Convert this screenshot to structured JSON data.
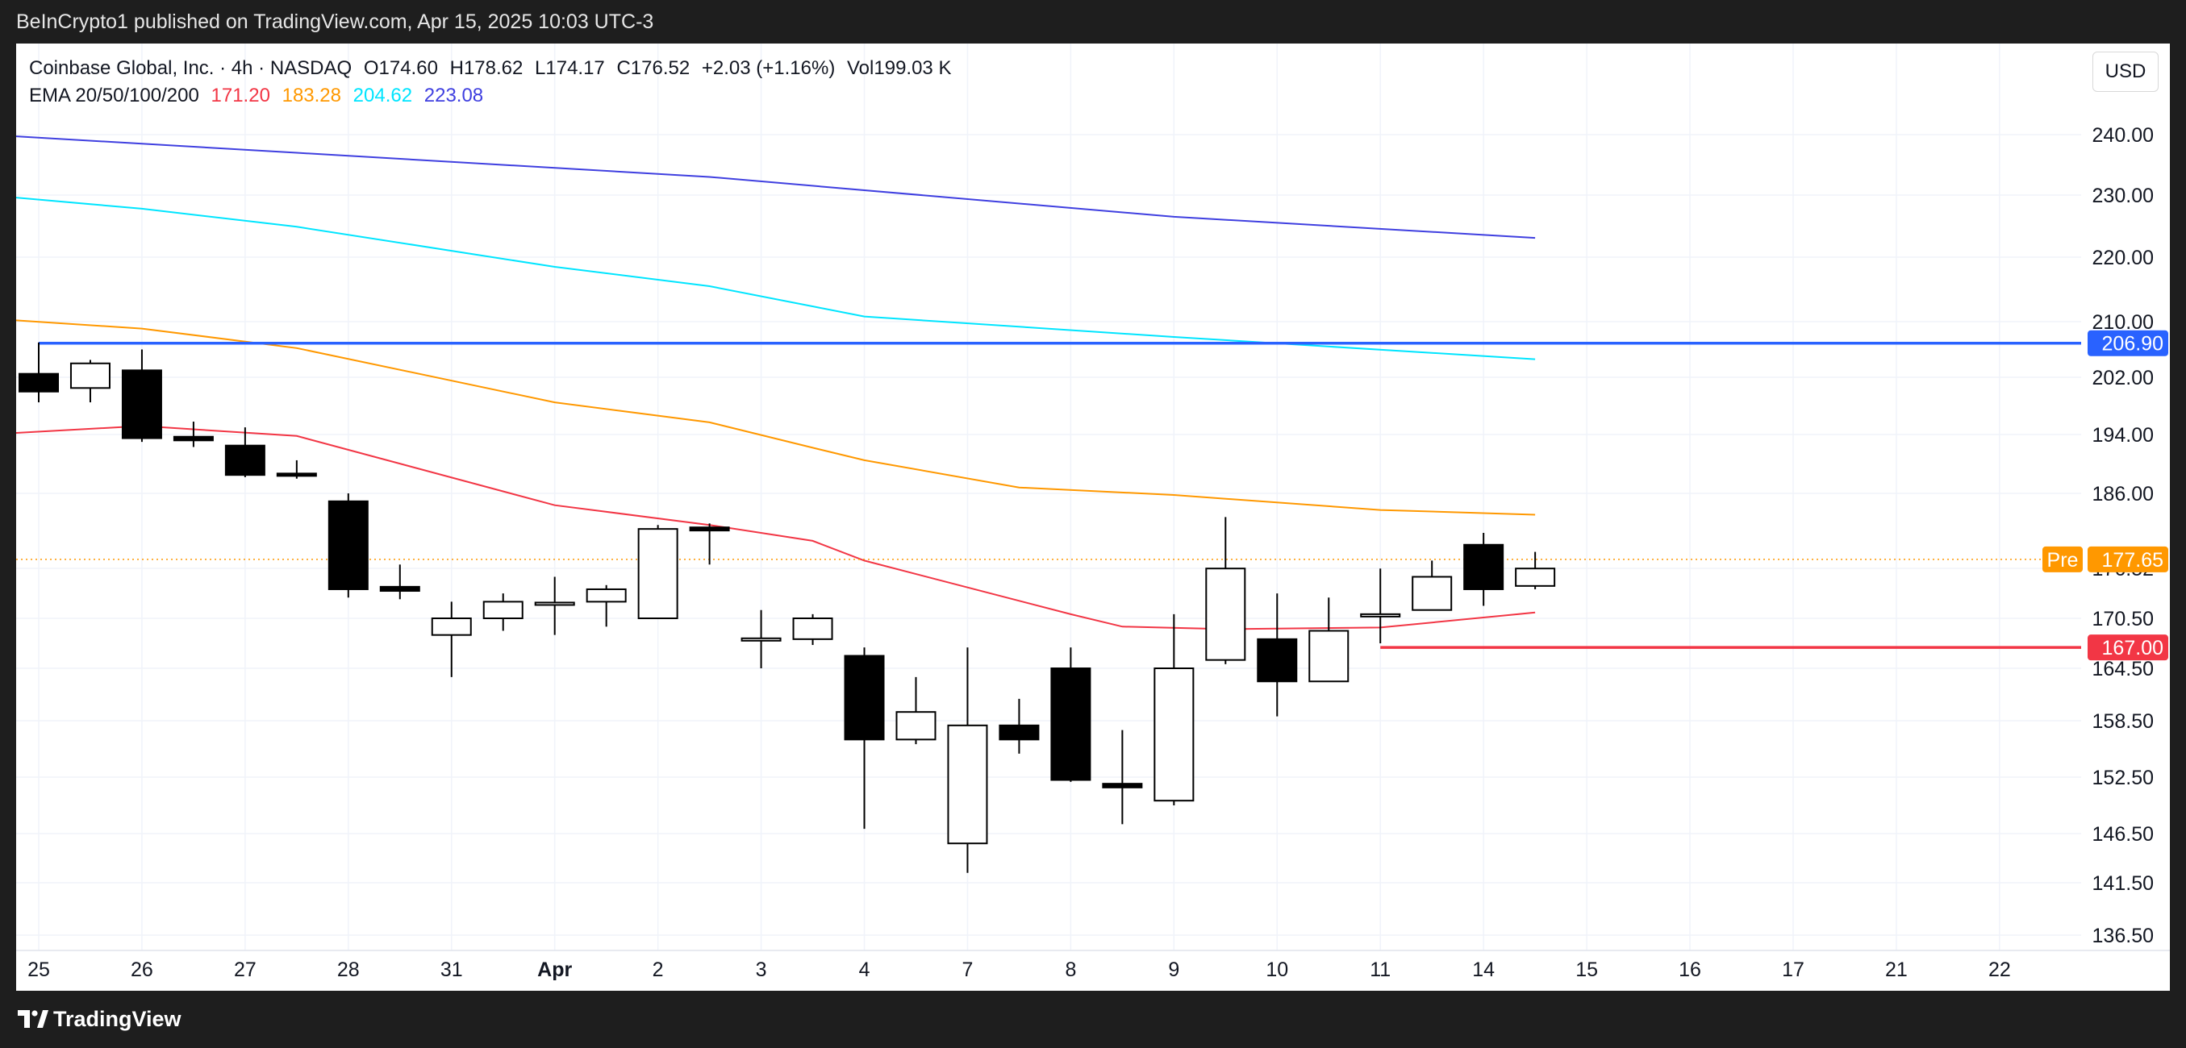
{
  "header": {
    "publisher_line": "BeInCrypto1 published on TradingView.com, Apr 15, 2025 10:03 UTC-3"
  },
  "legend": {
    "symbol_line": "Coinbase Global, Inc. · 4h · NASDAQ",
    "open_label": "O",
    "open": "174.60",
    "high_label": "H",
    "high": "178.62",
    "low_label": "L",
    "low": "174.17",
    "close_label": "C",
    "close": "176.52",
    "change": "+2.03 (+1.16%)",
    "volume_label": "Vol",
    "volume": "199.03 K",
    "ema_label": "EMA 20/50/100/200",
    "ema20": "171.20",
    "ema50": "183.28",
    "ema100": "204.62",
    "ema200": "223.08"
  },
  "currency": "USD",
  "footer": {
    "brand": "TradingView"
  },
  "colors": {
    "ema20": "#f23645",
    "ema50": "#ff9800",
    "ema100": "#00e5ff",
    "ema200": "#3f3fe0",
    "resistance": "#2962ff",
    "support": "#f23645",
    "pre": "#ff9800"
  },
  "chart_data": {
    "type": "candlestick",
    "timeframe": "4h",
    "y_ticks": [
      "240.00",
      "230.00",
      "220.00",
      "210.00",
      "202.00",
      "194.00",
      "186.00",
      "176.52",
      "170.50",
      "164.50",
      "158.50",
      "152.50",
      "146.50",
      "141.50",
      "136.50"
    ],
    "x_labels": [
      {
        "label": "25",
        "slot": 0
      },
      {
        "label": "26",
        "slot": 2
      },
      {
        "label": "27",
        "slot": 4
      },
      {
        "label": "28",
        "slot": 6
      },
      {
        "label": "31",
        "slot": 8
      },
      {
        "label": "Apr",
        "slot": 10,
        "bold": true
      },
      {
        "label": "2",
        "slot": 12
      },
      {
        "label": "3",
        "slot": 14
      },
      {
        "label": "4",
        "slot": 16
      },
      {
        "label": "7",
        "slot": 18
      },
      {
        "label": "8",
        "slot": 20
      },
      {
        "label": "9",
        "slot": 22
      },
      {
        "label": "10",
        "slot": 24
      },
      {
        "label": "11",
        "slot": 26
      },
      {
        "label": "14",
        "slot": 28
      },
      {
        "label": "15",
        "slot": 30
      },
      {
        "label": "16",
        "slot": 32
      },
      {
        "label": "17",
        "slot": 34
      },
      {
        "label": "21",
        "slot": 36
      },
      {
        "label": "22",
        "slot": 38
      }
    ],
    "candles": [
      {
        "o": 202.5,
        "h": 207.0,
        "l": 198.5,
        "c": 200.0
      },
      {
        "o": 200.5,
        "h": 204.5,
        "l": 198.5,
        "c": 204.0
      },
      {
        "o": 203.0,
        "h": 206.0,
        "l": 193.0,
        "c": 193.5
      },
      {
        "o": 193.7,
        "h": 195.8,
        "l": 192.3,
        "c": 193.2
      },
      {
        "o": 192.5,
        "h": 195.0,
        "l": 188.2,
        "c": 188.5
      },
      {
        "o": 188.7,
        "h": 190.5,
        "l": 188.0,
        "c": 188.4
      },
      {
        "o": 185.0,
        "h": 186.0,
        "l": 173.0,
        "c": 174.0
      },
      {
        "o": 174.3,
        "h": 177.0,
        "l": 172.8,
        "c": 173.8
      },
      {
        "o": 168.5,
        "h": 172.5,
        "l": 163.5,
        "c": 170.5
      },
      {
        "o": 170.5,
        "h": 173.5,
        "l": 169.0,
        "c": 172.5
      },
      {
        "o": 172.3,
        "h": 175.5,
        "l": 168.5,
        "c": 172.4
      },
      {
        "o": 172.5,
        "h": 174.5,
        "l": 169.5,
        "c": 174.0
      },
      {
        "o": 170.5,
        "h": 182.0,
        "l": 170.5,
        "c": 181.5
      },
      {
        "o": 181.7,
        "h": 182.2,
        "l": 177.0,
        "c": 181.3
      },
      {
        "o": 168.0,
        "h": 171.5,
        "l": 164.5,
        "c": 168.1
      },
      {
        "o": 168.0,
        "h": 171.0,
        "l": 167.3,
        "c": 170.5
      },
      {
        "o": 166.0,
        "h": 167.0,
        "l": 147.0,
        "c": 156.5
      },
      {
        "o": 156.5,
        "h": 163.5,
        "l": 156.0,
        "c": 159.5
      },
      {
        "o": 145.5,
        "h": 167.0,
        "l": 142.5,
        "c": 158.0
      },
      {
        "o": 158.0,
        "h": 161.0,
        "l": 155.0,
        "c": 156.5
      },
      {
        "o": 164.5,
        "h": 167.0,
        "l": 152.0,
        "c": 152.2
      },
      {
        "o": 151.8,
        "h": 157.5,
        "l": 147.5,
        "c": 151.4
      },
      {
        "o": 150.0,
        "h": 171.0,
        "l": 149.5,
        "c": 164.5
      },
      {
        "o": 165.5,
        "h": 183.0,
        "l": 165.0,
        "c": 176.5
      },
      {
        "o": 168.0,
        "h": 173.5,
        "l": 159.0,
        "c": 163.0
      },
      {
        "o": 163.0,
        "h": 173.0,
        "l": 163.0,
        "c": 169.0
      },
      {
        "o": 171.0,
        "h": 176.5,
        "l": 167.5,
        "c": 171.0
      },
      {
        "o": 171.5,
        "h": 177.5,
        "l": 171.5,
        "c": 175.5
      },
      {
        "o": 179.5,
        "h": 181.0,
        "l": 172.0,
        "c": 174.0
      },
      {
        "o": 174.4,
        "h": 178.6,
        "l": 174.0,
        "c": 176.5
      }
    ],
    "ema_series": [
      {
        "key": "ema20",
        "points": [
          {
            "slot": -1,
            "value": 194.0
          },
          {
            "slot": 2,
            "value": 195.2
          },
          {
            "slot": 5,
            "value": 193.8
          },
          {
            "slot": 10,
            "value": 184.5
          },
          {
            "slot": 13,
            "value": 182.0
          },
          {
            "slot": 15,
            "value": 180.0
          },
          {
            "slot": 16,
            "value": 177.5
          },
          {
            "slot": 20,
            "value": 171.0
          },
          {
            "slot": 21,
            "value": 169.5
          },
          {
            "slot": 23,
            "value": 169.2
          },
          {
            "slot": 26,
            "value": 169.4
          },
          {
            "slot": 29,
            "value": 171.2
          }
        ]
      },
      {
        "key": "ema50",
        "points": [
          {
            "slot": -1,
            "value": 210.5
          },
          {
            "slot": 2,
            "value": 209.0
          },
          {
            "slot": 5,
            "value": 206.2
          },
          {
            "slot": 10,
            "value": 198.5
          },
          {
            "slot": 13,
            "value": 195.7
          },
          {
            "slot": 15,
            "value": 192.2
          },
          {
            "slot": 16,
            "value": 190.5
          },
          {
            "slot": 19,
            "value": 186.8
          },
          {
            "slot": 22,
            "value": 185.8
          },
          {
            "slot": 26,
            "value": 183.9
          },
          {
            "slot": 29,
            "value": 183.3
          }
        ]
      },
      {
        "key": "ema100",
        "points": [
          {
            "slot": -1,
            "value": 230.0
          },
          {
            "slot": 2,
            "value": 227.8
          },
          {
            "slot": 5,
            "value": 224.9
          },
          {
            "slot": 10,
            "value": 218.5
          },
          {
            "slot": 13,
            "value": 215.5
          },
          {
            "slot": 16,
            "value": 210.8
          },
          {
            "slot": 22,
            "value": 207.8
          },
          {
            "slot": 29,
            "value": 204.6
          }
        ]
      },
      {
        "key": "ema200",
        "points": [
          {
            "slot": -1,
            "value": 240.0
          },
          {
            "slot": 5,
            "value": 237.0
          },
          {
            "slot": 13,
            "value": 233.0
          },
          {
            "slot": 22,
            "value": 226.5
          },
          {
            "slot": 29,
            "value": 223.1
          }
        ]
      }
    ],
    "levels": [
      {
        "key": "resistance",
        "label": "206.90",
        "value": 206.9,
        "from_slot": 0
      },
      {
        "key": "support",
        "label": "167.00",
        "value": 167.0,
        "from_slot": 26
      }
    ],
    "premarket": {
      "tag": "Pre",
      "label": "177.65",
      "value": 177.65
    }
  }
}
